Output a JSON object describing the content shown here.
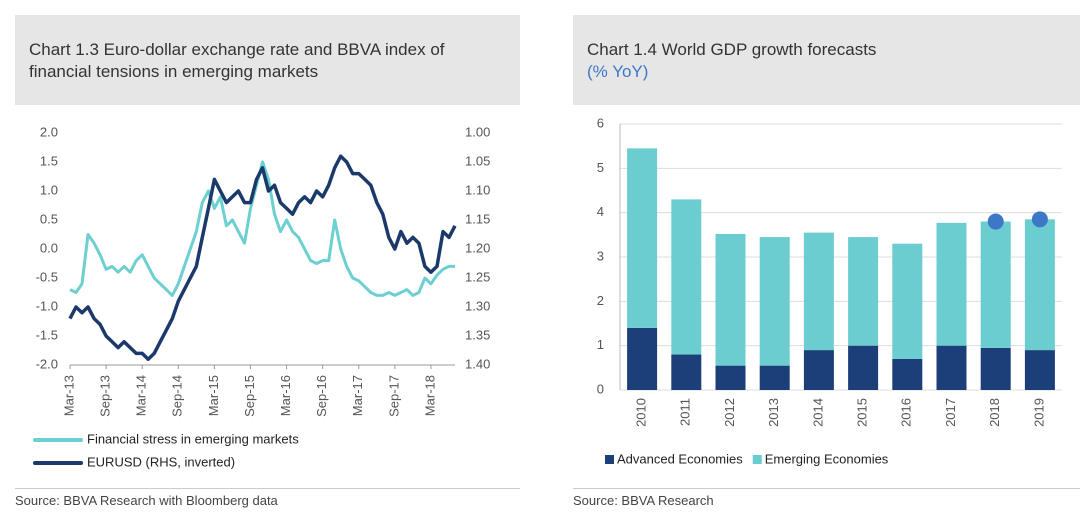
{
  "chart_data": [
    {
      "type": "line",
      "title": "Chart 1.3 Euro-dollar exchange rate and BBVA index of financial tensions in emerging markets",
      "source": "Source: BBVA Research with Bloomberg data",
      "categories": [
        "Mar-13",
        null,
        null,
        null,
        null,
        null,
        "Sep-13",
        null,
        null,
        null,
        null,
        null,
        "Mar-14",
        null,
        null,
        null,
        null,
        null,
        "Sep-14",
        null,
        null,
        null,
        null,
        null,
        "Mar-15",
        null,
        null,
        null,
        null,
        null,
        "Sep-15",
        null,
        null,
        null,
        null,
        null,
        "Mar-16",
        null,
        null,
        null,
        null,
        null,
        "Sep-16",
        null,
        null,
        null,
        null,
        null,
        "Mar-17",
        null,
        null,
        null,
        null,
        null,
        "Sep-17",
        null,
        null,
        null,
        null,
        null,
        "Mar-18",
        null,
        null,
        null,
        null
      ],
      "series": [
        {
          "name": "Financial stress in emerging markets",
          "color": "#6ecfd0",
          "values": [
            -0.7,
            -0.75,
            -0.6,
            0.25,
            0.1,
            -0.1,
            -0.35,
            -0.3,
            -0.4,
            -0.3,
            -0.4,
            -0.2,
            -0.1,
            -0.3,
            -0.5,
            -0.6,
            -0.7,
            -0.8,
            -0.6,
            -0.3,
            0.0,
            0.3,
            0.8,
            1.0,
            0.7,
            0.9,
            0.4,
            0.5,
            0.3,
            0.1,
            0.7,
            1.1,
            1.5,
            1.2,
            0.6,
            0.3,
            0.5,
            0.3,
            0.2,
            0.0,
            -0.2,
            -0.25,
            -0.2,
            -0.2,
            0.5,
            0.0,
            -0.3,
            -0.5,
            -0.55,
            -0.65,
            -0.75,
            -0.8,
            -0.8,
            -0.75,
            -0.8,
            -0.75,
            -0.7,
            -0.8,
            -0.75,
            -0.5,
            -0.6,
            -0.45,
            -0.35,
            -0.3,
            -0.3
          ]
        },
        {
          "name": "EURUSD (RHS, inverted)",
          "color": "#1b3a6b",
          "axis": "y2",
          "values": [
            1.32,
            1.3,
            1.31,
            1.3,
            1.32,
            1.33,
            1.35,
            1.36,
            1.37,
            1.36,
            1.37,
            1.38,
            1.38,
            1.39,
            1.38,
            1.36,
            1.34,
            1.32,
            1.29,
            1.27,
            1.25,
            1.23,
            1.18,
            1.13,
            1.08,
            1.1,
            1.12,
            1.11,
            1.1,
            1.12,
            1.12,
            1.08,
            1.06,
            1.1,
            1.09,
            1.12,
            1.13,
            1.14,
            1.12,
            1.11,
            1.12,
            1.1,
            1.11,
            1.09,
            1.06,
            1.04,
            1.05,
            1.07,
            1.07,
            1.08,
            1.09,
            1.12,
            1.14,
            1.18,
            1.2,
            1.17,
            1.19,
            1.18,
            1.19,
            1.23,
            1.24,
            1.23,
            1.17,
            1.18,
            1.16
          ]
        }
      ],
      "ylim": [
        -2,
        2
      ],
      "yticks": [
        {
          "value": 2,
          "label": "2.0"
        },
        {
          "value": 1.5,
          "label": "1.5"
        },
        {
          "value": 1,
          "label": "1.0"
        },
        {
          "value": 0.5,
          "label": "0.5"
        },
        {
          "value": 0,
          "label": "0.0"
        },
        {
          "value": -0.5,
          "label": "-0.5"
        },
        {
          "value": -1,
          "label": "-1.0"
        },
        {
          "value": -1.5,
          "label": "-1.5"
        },
        {
          "value": -2,
          "label": "-2.0"
        }
      ],
      "y2lim": [
        1.4,
        1.0
      ],
      "y2_inverted": true,
      "y2ticks": [
        {
          "value": 1.0,
          "label": "1.00"
        },
        {
          "value": 1.05,
          "label": "1.05"
        },
        {
          "value": 1.1,
          "label": "1.10"
        },
        {
          "value": 1.15,
          "label": "1.15"
        },
        {
          "value": 1.2,
          "label": "1.20"
        },
        {
          "value": 1.25,
          "label": "1.25"
        },
        {
          "value": 1.3,
          "label": "1.30"
        },
        {
          "value": 1.35,
          "label": "1.35"
        },
        {
          "value": 1.4,
          "label": "1.40"
        }
      ],
      "grid": false,
      "legend": "bottom"
    },
    {
      "type": "stacked_bar",
      "title": "Chart 1.4 World GDP growth forecasts",
      "subtitle": "(% YoY)",
      "source": "Source: BBVA Research",
      "categories": [
        "2010",
        "2011",
        "2012",
        "2013",
        "2014",
        "2015",
        "2016",
        "2017",
        "2018",
        "2019"
      ],
      "series": [
        {
          "name": "Advanced Economies",
          "color": "#1c3f7a",
          "values": [
            1.4,
            0.8,
            0.55,
            0.55,
            0.9,
            1.0,
            0.7,
            1.0,
            0.95,
            0.9
          ]
        },
        {
          "name": "Emerging Economies",
          "color": "#6ccdd0",
          "values": [
            4.05,
            3.5,
            2.97,
            2.9,
            2.65,
            2.45,
            2.6,
            2.77,
            2.85,
            2.95
          ]
        }
      ],
      "forecast_markers": {
        "color": "#3d78c8",
        "values": [
          null,
          null,
          null,
          null,
          null,
          null,
          null,
          null,
          3.8,
          3.85
        ]
      },
      "ylim": [
        0,
        6
      ],
      "yticks": [
        0,
        1,
        2,
        3,
        4,
        5,
        6
      ],
      "grid": true,
      "legend": "bottom"
    }
  ]
}
